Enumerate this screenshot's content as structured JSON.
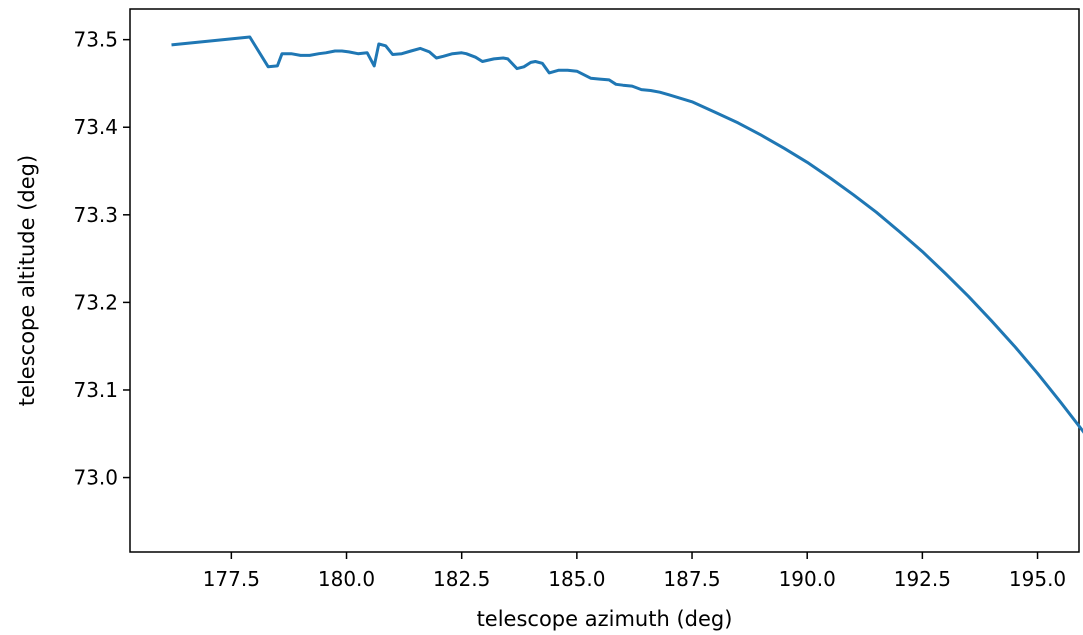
{
  "chart_data": {
    "type": "line",
    "title": "",
    "xlabel": "telescope azimuth (deg)",
    "ylabel": "telescope altitude (deg)",
    "xlim": [
      175.3,
      195.9
    ],
    "ylim": [
      72.915,
      73.535
    ],
    "xticks": [
      177.5,
      180.0,
      182.5,
      185.0,
      187.5,
      190.0,
      192.5,
      195.0
    ],
    "xtick_labels": [
      "177.5",
      "180.0",
      "182.5",
      "185.0",
      "187.5",
      "190.0",
      "192.5",
      "195.0"
    ],
    "yticks": [
      73.0,
      73.1,
      73.2,
      73.3,
      73.4,
      73.5
    ],
    "ytick_labels": [
      "73.0",
      "73.1",
      "73.2",
      "73.3",
      "73.4",
      "73.5"
    ],
    "grid": false,
    "series": [
      {
        "color": "#1f77b4",
        "points": [
          [
            176.2,
            73.494
          ],
          [
            177.9,
            73.503
          ],
          [
            178.3,
            73.469
          ],
          [
            178.5,
            73.47
          ],
          [
            178.6,
            73.484
          ],
          [
            178.8,
            73.484
          ],
          [
            179.0,
            73.482
          ],
          [
            179.2,
            73.482
          ],
          [
            179.4,
            73.484
          ],
          [
            179.55,
            73.485
          ],
          [
            179.75,
            73.487
          ],
          [
            179.9,
            73.487
          ],
          [
            180.05,
            73.486
          ],
          [
            180.25,
            73.484
          ],
          [
            180.45,
            73.485
          ],
          [
            180.6,
            73.47
          ],
          [
            180.7,
            73.495
          ],
          [
            180.85,
            73.493
          ],
          [
            181.0,
            73.483
          ],
          [
            181.2,
            73.484
          ],
          [
            181.4,
            73.487
          ],
          [
            181.6,
            73.49
          ],
          [
            181.8,
            73.486
          ],
          [
            181.95,
            73.479
          ],
          [
            182.1,
            73.481
          ],
          [
            182.3,
            73.484
          ],
          [
            182.5,
            73.485
          ],
          [
            182.6,
            73.484
          ],
          [
            182.8,
            73.48
          ],
          [
            182.95,
            73.475
          ],
          [
            183.2,
            73.478
          ],
          [
            183.4,
            73.479
          ],
          [
            183.5,
            73.478
          ],
          [
            183.7,
            73.467
          ],
          [
            183.85,
            73.469
          ],
          [
            184.0,
            73.474
          ],
          [
            184.1,
            73.475
          ],
          [
            184.25,
            73.473
          ],
          [
            184.4,
            73.462
          ],
          [
            184.6,
            73.465
          ],
          [
            184.8,
            73.465
          ],
          [
            185.0,
            73.464
          ],
          [
            185.15,
            73.46
          ],
          [
            185.3,
            73.456
          ],
          [
            185.5,
            73.455
          ],
          [
            185.7,
            73.454
          ],
          [
            185.85,
            73.449
          ],
          [
            186.0,
            73.448
          ],
          [
            186.2,
            73.447
          ],
          [
            186.4,
            73.443
          ],
          [
            186.6,
            73.442
          ],
          [
            186.8,
            73.44
          ],
          [
            187.0,
            73.437
          ],
          [
            187.5,
            73.429
          ],
          [
            188.0,
            73.417
          ],
          [
            188.5,
            73.405
          ],
          [
            189.0,
            73.391
          ],
          [
            189.5,
            73.376
          ],
          [
            190.0,
            73.36
          ],
          [
            190.5,
            73.342
          ],
          [
            191.0,
            73.323
          ],
          [
            191.5,
            73.303
          ],
          [
            192.0,
            73.281
          ],
          [
            192.5,
            73.258
          ],
          [
            193.0,
            73.233
          ],
          [
            193.5,
            73.207
          ],
          [
            194.0,
            73.179
          ],
          [
            194.5,
            73.15
          ],
          [
            195.0,
            73.119
          ],
          [
            195.5,
            73.086
          ],
          [
            196.0,
            73.052
          ],
          [
            196.5,
            73.017
          ],
          [
            197.0,
            72.972
          ]
        ]
      }
    ]
  }
}
